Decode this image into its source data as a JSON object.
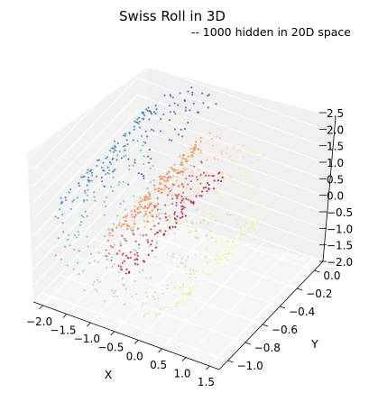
{
  "chart_data": {
    "type": "scatter",
    "projection": "3d",
    "title": "Swiss Roll in 3D",
    "subtitle": "-- 1000 hidden in 20D space",
    "xlabel": "X",
    "ylabel": "Y",
    "zlabel": "",
    "x_ticks": [
      "−2.0",
      "−1.5",
      "−1.0",
      "−0.5",
      "0.0",
      "0.5",
      "1.0",
      "1.5"
    ],
    "y_ticks": [
      "−1.0",
      "−0.8",
      "−0.6",
      "−0.4",
      "−0.2",
      "0.0"
    ],
    "z_ticks": [
      "−2.0",
      "−1.5",
      "−1.0",
      "−0.5",
      "0.0",
      "0.5",
      "1.0",
      "1.5",
      "2.0",
      "2.5"
    ],
    "xlim": [
      -2.2,
      1.7
    ],
    "ylim": [
      -1.1,
      0.1
    ],
    "zlim": [
      -2.0,
      2.5
    ],
    "grid": true,
    "colormap": "Spectral",
    "colors": {
      "spectral": [
        "#9e0142",
        "#d53e4f",
        "#f46d43",
        "#fdae61",
        "#fee08b",
        "#ffffbf",
        "#e6f598",
        "#abdda4",
        "#66c2a5",
        "#3288bd",
        "#5e4fa2"
      ],
      "pane_left": "#ebebeb",
      "pane_right": "#e3e3e3",
      "pane_floor": "#f2f2f2",
      "grid": "#ffffff",
      "edge": "#000000"
    },
    "points": {
      "count": 1000,
      "t_range": [
        0,
        1
      ],
      "marker_size": 1.5
    }
  }
}
